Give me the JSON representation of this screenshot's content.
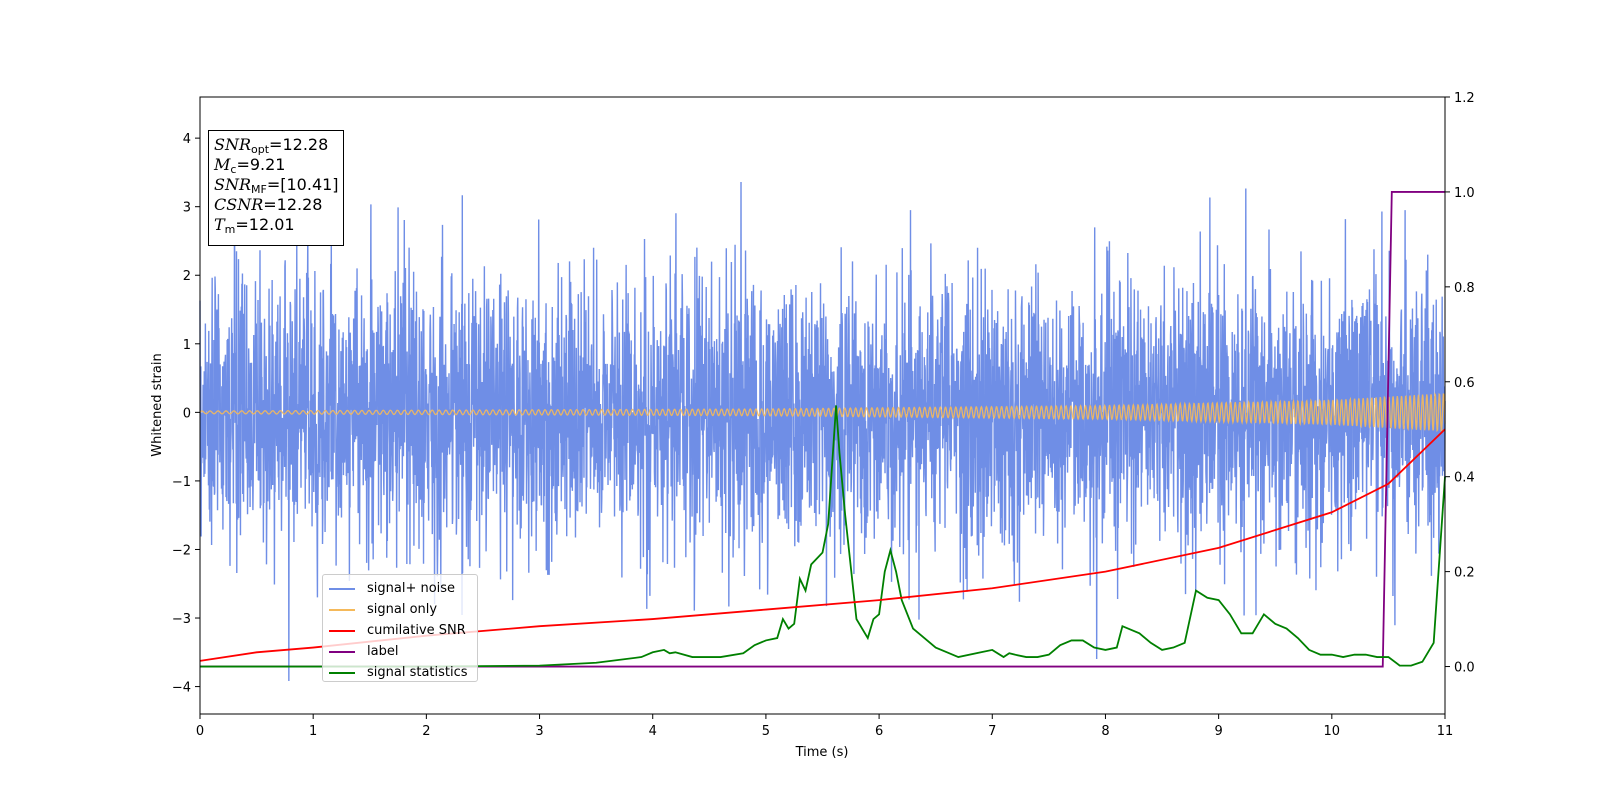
{
  "chart_data": {
    "type": "line",
    "title": "",
    "xlabel": "Time (s)",
    "ylabel": "Whitened strain",
    "xlim": [
      0,
      11
    ],
    "ylim": [
      -4.4,
      4.6
    ],
    "y2lim": [
      -0.1,
      1.2
    ],
    "x_ticks": [
      "0",
      "1",
      "2",
      "3",
      "4",
      "5",
      "6",
      "7",
      "8",
      "9",
      "10",
      "11"
    ],
    "y_ticks": [
      "−4",
      "−3",
      "−2",
      "−1",
      "0",
      "1",
      "2",
      "3",
      "4"
    ],
    "y2_ticks": [
      "0.0",
      "0.2",
      "0.4",
      "0.6",
      "0.8",
      "1.0",
      "1.2"
    ],
    "grid": false,
    "legend_position": "lower-left",
    "series": [
      {
        "name": "signal+ noise",
        "axis": "left",
        "color": "#6f8ee6",
        "description_level": "noisy strain oscillating roughly between -3.5 and 3.5",
        "std": 1.0
      },
      {
        "name": "signal only",
        "axis": "left",
        "color": "#f5b95a",
        "amplitude": {
          "x": [
            0,
            5,
            8,
            10,
            11
          ],
          "values": [
            0.02,
            0.05,
            0.1,
            0.18,
            0.28
          ]
        }
      },
      {
        "name": "cumilative SNR",
        "axis": "right",
        "color": "#ff0000",
        "x": [
          0,
          0.5,
          1,
          2,
          3,
          4,
          5,
          6,
          7,
          8,
          9,
          10,
          10.5,
          11
        ],
        "values": [
          0.012,
          0.03,
          0.04,
          0.065,
          0.085,
          0.1,
          0.12,
          0.14,
          0.165,
          0.2,
          0.25,
          0.325,
          0.385,
          0.5
        ]
      },
      {
        "name": "label",
        "axis": "right",
        "color": "#800080",
        "x": [
          0,
          10.45,
          10.53,
          11
        ],
        "values": [
          0,
          0,
          1,
          1
        ]
      },
      {
        "name": "signal statistics",
        "axis": "right",
        "color": "#008000",
        "x": [
          0,
          2,
          3,
          3.5,
          3.9,
          4.0,
          4.1,
          4.15,
          4.2,
          4.35,
          4.6,
          4.8,
          4.9,
          5.0,
          5.1,
          5.15,
          5.2,
          5.25,
          5.3,
          5.35,
          5.4,
          5.5,
          5.55,
          5.62,
          5.65,
          5.7,
          5.8,
          5.9,
          5.95,
          6.0,
          6.05,
          6.1,
          6.15,
          6.2,
          6.3,
          6.4,
          6.5,
          6.6,
          6.7,
          6.9,
          7.0,
          7.1,
          7.15,
          7.2,
          7.3,
          7.4,
          7.5,
          7.6,
          7.7,
          7.8,
          7.9,
          8.0,
          8.1,
          8.15,
          8.2,
          8.3,
          8.4,
          8.5,
          8.6,
          8.7,
          8.8,
          8.9,
          9.0,
          9.1,
          9.2,
          9.3,
          9.4,
          9.45,
          9.5,
          9.6,
          9.7,
          9.8,
          9.9,
          10.0,
          10.1,
          10.2,
          10.3,
          10.4,
          10.5,
          10.6,
          10.7,
          10.8,
          10.9,
          11.0
        ],
        "values": [
          0,
          0,
          0.002,
          0.008,
          0.02,
          0.03,
          0.035,
          0.028,
          0.03,
          0.02,
          0.02,
          0.028,
          0.045,
          0.055,
          0.06,
          0.1,
          0.08,
          0.09,
          0.185,
          0.16,
          0.215,
          0.24,
          0.3,
          0.55,
          0.45,
          0.32,
          0.1,
          0.06,
          0.1,
          0.11,
          0.2,
          0.245,
          0.2,
          0.14,
          0.08,
          0.06,
          0.04,
          0.03,
          0.02,
          0.03,
          0.035,
          0.02,
          0.028,
          0.025,
          0.02,
          0.02,
          0.025,
          0.045,
          0.055,
          0.055,
          0.04,
          0.035,
          0.04,
          0.085,
          0.08,
          0.07,
          0.05,
          0.035,
          0.04,
          0.05,
          0.16,
          0.145,
          0.14,
          0.11,
          0.07,
          0.07,
          0.11,
          0.1,
          0.09,
          0.08,
          0.06,
          0.035,
          0.025,
          0.025,
          0.02,
          0.025,
          0.025,
          0.02,
          0.02,
          0.002,
          0.002,
          0.01,
          0.05,
          0.4
        ]
      }
    ]
  },
  "info_box": {
    "snr_opt_label": "SNR",
    "snr_opt_sub": "opt",
    "snr_opt_value": "=12.28",
    "mc_label": "M",
    "mc_sub": "c",
    "mc_value": "=9.21",
    "snr_mf_label": "SNR",
    "snr_mf_sub": "MF",
    "snr_mf_value": "=[10.41]",
    "csnr_label": "CSNR",
    "csnr_value": "=12.28",
    "tm_label": "T",
    "tm_sub": "m",
    "tm_value": "=12.01"
  },
  "legend": [
    {
      "label": "signal+ noise",
      "color": "#6f8ee6"
    },
    {
      "label": "signal only",
      "color": "#f5b95a"
    },
    {
      "label": "cumilative SNR",
      "color": "#ff0000"
    },
    {
      "label": "label",
      "color": "#800080"
    },
    {
      "label": "signal statistics",
      "color": "#008000"
    }
  ]
}
